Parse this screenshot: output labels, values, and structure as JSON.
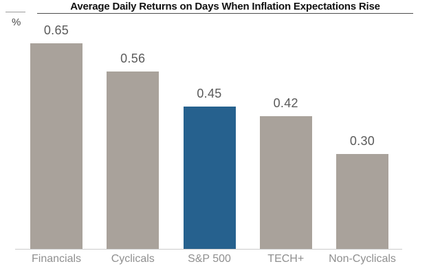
{
  "chart_data": {
    "type": "bar",
    "title": "Average Daily Returns on Days When Inflation Expectations Rise",
    "ylabel": "%",
    "xlabel": "",
    "categories": [
      "Financials",
      "Cyclicals",
      "S&P 500",
      "TECH+",
      "Non-Cyclicals"
    ],
    "values": [
      0.65,
      0.56,
      0.45,
      0.42,
      0.3
    ],
    "ylim": [
      0,
      0.72
    ],
    "grid": false,
    "legend_position": "none",
    "highlighted_category": "S&P 500",
    "bars": [
      {
        "category": "Financials",
        "value": 0.65,
        "label": "0.65",
        "highlight": false
      },
      {
        "category": "Cyclicals",
        "value": 0.56,
        "label": "0.56",
        "highlight": false
      },
      {
        "category": "S&P 500",
        "value": 0.45,
        "label": "0.45",
        "highlight": true
      },
      {
        "category": "TECH+",
        "value": 0.42,
        "label": "0.42",
        "highlight": false
      },
      {
        "category": "Non-Cyclicals",
        "value": 0.3,
        "label": "0.30",
        "highlight": false
      }
    ],
    "colors": {
      "bar_default": "#a9a29b",
      "bar_highlight": "#26618e",
      "value_label": "#5a5a5a",
      "category_label": "#8f8f8f",
      "title": "#111111",
      "title_underline": "#4d4d4d",
      "baseline": "#cbcbcb"
    }
  }
}
